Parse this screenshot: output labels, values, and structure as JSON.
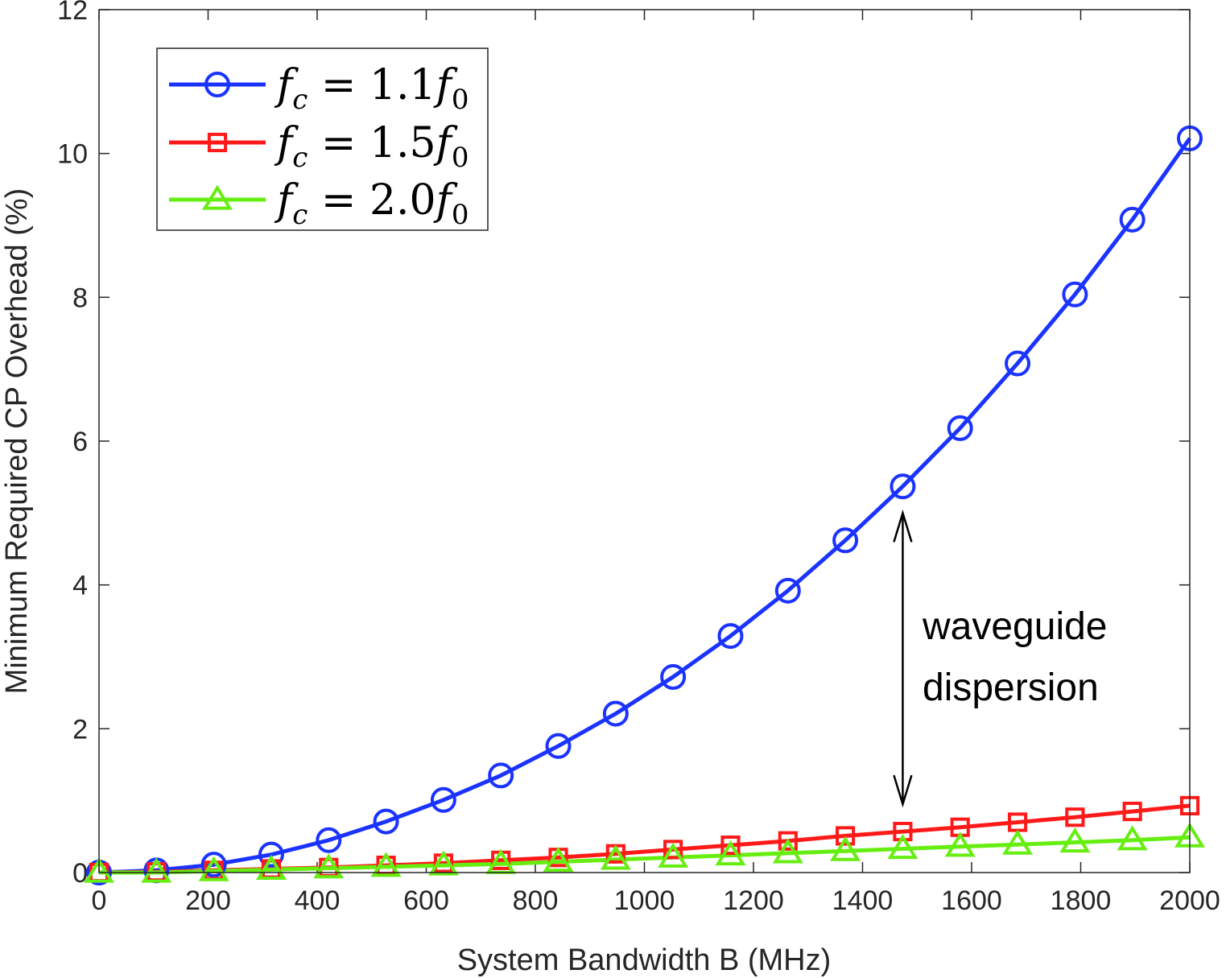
{
  "chart_data": {
    "type": "line",
    "title": "",
    "xlabel": "System Bandwidth B (MHz)",
    "ylabel": "Minimum Required CP Overhead (%)",
    "xlim": [
      0,
      2000
    ],
    "ylim": [
      0,
      12
    ],
    "xticks": [
      "0",
      "200",
      "400",
      "600",
      "800",
      "1000",
      "1200",
      "1400",
      "1600",
      "1800",
      "2000"
    ],
    "yticks": [
      "0",
      "2",
      "4",
      "6",
      "8",
      "10",
      "12"
    ],
    "x": [
      0,
      105.3,
      210.5,
      315.8,
      421.1,
      526.3,
      631.6,
      736.8,
      842.1,
      947.4,
      1052.6,
      1157.9,
      1263.2,
      1368.4,
      1473.7,
      1578.9,
      1684.2,
      1789.5,
      1894.7,
      2000
    ],
    "series": [
      {
        "name": "f_c = 1.1 f_0",
        "legend": {
          "var": "f",
          "sub": "c",
          "eq": " = ",
          "num": "1.1",
          "var2": "f",
          "sub2": "0"
        },
        "color": "#1a33ff",
        "marker": "circle",
        "values": [
          0.0,
          0.03,
          0.11,
          0.25,
          0.45,
          0.71,
          1.01,
          1.35,
          1.76,
          2.21,
          2.72,
          3.29,
          3.92,
          4.62,
          5.37,
          6.18,
          7.08,
          8.04,
          9.08,
          10.21
        ]
      },
      {
        "name": "f_c = 1.5 f_0",
        "legend": {
          "var": "f",
          "sub": "c",
          "eq": " = ",
          "num": "1.5",
          "var2": "f",
          "sub2": "0"
        },
        "color": "#ff1a1a",
        "marker": "square",
        "values": [
          0.0,
          0.01,
          0.03,
          0.05,
          0.07,
          0.1,
          0.13,
          0.17,
          0.21,
          0.26,
          0.32,
          0.38,
          0.44,
          0.51,
          0.57,
          0.63,
          0.7,
          0.77,
          0.85,
          0.93
        ]
      },
      {
        "name": "f_c = 2.0 f_0",
        "legend": {
          "var": "f",
          "sub": "c",
          "eq": " = ",
          "num": "2.0",
          "var2": "f",
          "sub2": "0"
        },
        "color": "#66ee11",
        "marker": "triangle",
        "values": [
          0.0,
          0.0,
          0.02,
          0.04,
          0.06,
          0.08,
          0.1,
          0.12,
          0.15,
          0.18,
          0.21,
          0.24,
          0.27,
          0.3,
          0.33,
          0.36,
          0.39,
          0.42,
          0.45,
          0.49
        ]
      }
    ],
    "annotations": [
      {
        "text_lines": [
          "waveguide",
          "dispersion"
        ],
        "arrow_x": 1473.7,
        "arrow_y_from": 0.95,
        "arrow_y_to": 5.0
      }
    ],
    "legend_position": "top-left",
    "grid": false
  }
}
